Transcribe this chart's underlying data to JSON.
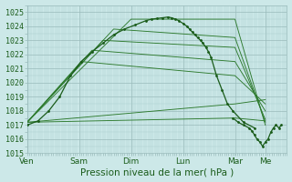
{
  "title": "",
  "xlabel": "Pression niveau de la mer( hPa )",
  "ylabel": "",
  "bg_color": "#cce8e8",
  "grid_color_minor": "#aacccc",
  "grid_color_major": "#99bbbb",
  "line_color_dark": "#1a5c1a",
  "line_color_med": "#2d7a2d",
  "ylim": [
    1015,
    1025.5
  ],
  "yticks": [
    1015,
    1016,
    1017,
    1018,
    1019,
    1020,
    1021,
    1022,
    1023,
    1024,
    1025
  ],
  "days": [
    "Ven",
    "Sam",
    "Dim",
    "Lun",
    "Mar",
    "Me"
  ],
  "day_positions": [
    0.0,
    0.2,
    0.4,
    0.6,
    0.8,
    0.9167
  ],
  "xlim": [
    0.0,
    1.0
  ],
  "series": [
    {
      "style": "dotted_marker",
      "x": [
        0.0,
        0.042,
        0.083,
        0.125,
        0.167,
        0.208,
        0.25,
        0.292,
        0.333,
        0.375,
        0.417,
        0.458,
        0.479,
        0.5,
        0.521,
        0.542,
        0.556,
        0.571,
        0.583,
        0.6,
        0.615,
        0.625,
        0.635,
        0.646,
        0.656,
        0.667,
        0.677,
        0.688,
        0.698,
        0.708,
        0.729,
        0.75,
        0.771,
        0.792,
        0.833,
        0.875
      ],
      "y": [
        1017.0,
        1017.3,
        1018.0,
        1019.0,
        1020.5,
        1021.5,
        1022.2,
        1022.8,
        1023.4,
        1023.8,
        1024.1,
        1024.4,
        1024.5,
        1024.55,
        1024.6,
        1024.65,
        1024.6,
        1024.5,
        1024.4,
        1024.2,
        1024.0,
        1023.8,
        1023.6,
        1023.4,
        1023.2,
        1023.0,
        1022.8,
        1022.5,
        1022.2,
        1021.8,
        1020.5,
        1019.5,
        1018.5,
        1018.0,
        1017.2,
        1016.8
      ]
    },
    {
      "style": "line",
      "x": [
        0.0,
        0.4,
        0.8,
        0.9167
      ],
      "y": [
        1017.2,
        1024.5,
        1024.5,
        1017.0
      ]
    },
    {
      "style": "line",
      "x": [
        0.0,
        0.333,
        0.8,
        0.9167
      ],
      "y": [
        1017.2,
        1023.8,
        1023.2,
        1017.2
      ]
    },
    {
      "style": "line",
      "x": [
        0.0,
        0.292,
        0.8,
        0.9167
      ],
      "y": [
        1017.2,
        1023.0,
        1022.5,
        1017.4
      ]
    },
    {
      "style": "line",
      "x": [
        0.0,
        0.25,
        0.8,
        0.9167
      ],
      "y": [
        1017.2,
        1022.3,
        1021.5,
        1018.0
      ]
    },
    {
      "style": "line",
      "x": [
        0.0,
        0.208,
        0.8,
        0.9167
      ],
      "y": [
        1017.2,
        1021.5,
        1020.5,
        1018.5
      ]
    },
    {
      "style": "line",
      "x": [
        0.0,
        0.8,
        0.9167
      ],
      "y": [
        1017.2,
        1018.5,
        1018.8
      ]
    },
    {
      "style": "line",
      "x": [
        0.0,
        0.8,
        0.9167
      ],
      "y": [
        1017.2,
        1017.5,
        1017.3
      ]
    },
    {
      "style": "dotted_marker2",
      "x": [
        0.792,
        0.8125,
        0.833,
        0.854,
        0.865,
        0.875,
        0.885,
        0.896,
        0.906,
        0.917,
        0.927,
        0.938,
        0.948,
        0.958,
        0.969,
        0.979
      ],
      "y": [
        1017.5,
        1017.2,
        1017.0,
        1016.8,
        1016.6,
        1016.3,
        1016.0,
        1015.8,
        1015.5,
        1015.8,
        1016.0,
        1016.5,
        1016.8,
        1017.0,
        1016.8,
        1017.0
      ]
    }
  ]
}
